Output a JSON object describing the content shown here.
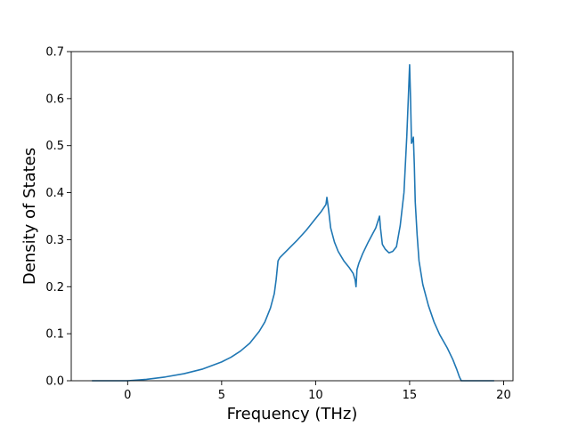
{
  "chart_data": {
    "type": "line",
    "title": "",
    "xlabel": "Frequency (THz)",
    "ylabel": "Density of States",
    "xlim": [
      -3.0,
      20.5
    ],
    "ylim": [
      0.0,
      0.7
    ],
    "x_ticks": [
      0,
      5,
      10,
      15,
      20
    ],
    "y_ticks": [
      0.0,
      0.1,
      0.2,
      0.3,
      0.4,
      0.5,
      0.6,
      0.7
    ],
    "x_tick_labels": [
      "0",
      "5",
      "10",
      "15",
      "20"
    ],
    "y_tick_labels": [
      "0.0",
      "0.1",
      "0.2",
      "0.3",
      "0.4",
      "0.5",
      "0.6",
      "0.7"
    ],
    "grid": false,
    "legend": "none",
    "line_color": "#1f77b4",
    "series": [
      {
        "x": [
          -1.9,
          -1.0,
          0.0,
          1.0,
          2.0,
          3.0,
          4.0,
          5.0,
          5.5,
          6.0,
          6.5,
          7.0,
          7.3,
          7.6,
          7.8,
          7.9,
          8.0,
          8.1,
          8.5,
          9.0,
          9.5,
          10.0,
          10.3,
          10.55,
          10.6,
          10.7,
          10.8,
          11.0,
          11.2,
          11.5,
          11.8,
          12.0,
          12.1,
          12.15,
          12.2,
          12.3,
          12.5,
          12.8,
          13.0,
          13.2,
          13.4,
          13.45,
          13.55,
          13.7,
          13.9,
          14.1,
          14.3,
          14.5,
          14.7,
          14.85,
          14.95,
          15.0,
          15.05,
          15.1,
          15.15,
          15.2,
          15.25,
          15.3,
          15.4,
          15.5,
          15.7,
          16.0,
          16.3,
          16.6,
          17.0,
          17.3,
          17.5,
          17.65,
          17.75,
          17.9,
          18.5,
          19.0,
          19.5
        ],
        "y": [
          0.0,
          0.0,
          0.0,
          0.003,
          0.008,
          0.015,
          0.025,
          0.04,
          0.05,
          0.063,
          0.08,
          0.105,
          0.125,
          0.155,
          0.185,
          0.215,
          0.255,
          0.262,
          0.278,
          0.298,
          0.32,
          0.345,
          0.36,
          0.375,
          0.39,
          0.36,
          0.325,
          0.295,
          0.275,
          0.255,
          0.24,
          0.228,
          0.215,
          0.2,
          0.236,
          0.25,
          0.27,
          0.295,
          0.31,
          0.325,
          0.35,
          0.325,
          0.29,
          0.28,
          0.272,
          0.275,
          0.285,
          0.33,
          0.4,
          0.52,
          0.62,
          0.672,
          0.6,
          0.505,
          0.51,
          0.518,
          0.46,
          0.38,
          0.31,
          0.255,
          0.205,
          0.16,
          0.125,
          0.098,
          0.07,
          0.045,
          0.025,
          0.008,
          0.0,
          0.0,
          0.0,
          0.0,
          0.0
        ]
      }
    ]
  }
}
